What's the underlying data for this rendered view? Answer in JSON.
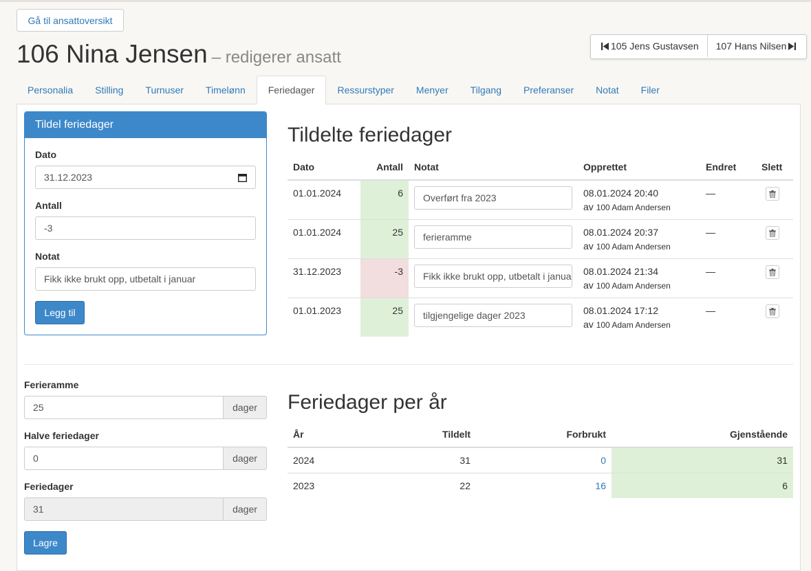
{
  "header": {
    "back_label": "Gå til ansattoversikt",
    "prev_employee": "105 Jens Gustavsen",
    "next_employee": "107 Hans Nilsen",
    "title": "106 Nina Jensen",
    "subtitle": "– redigerer ansatt"
  },
  "tabs": [
    "Personalia",
    "Stilling",
    "Turnuser",
    "Timelønn",
    "Feriedager",
    "Ressurstyper",
    "Menyer",
    "Tilgang",
    "Preferanser",
    "Notat",
    "Filer"
  ],
  "active_tab": "Feriedager",
  "form": {
    "title": "Tildel feriedager",
    "date_label": "Dato",
    "date_value": "31.12.2023",
    "amount_label": "Antall",
    "amount_value": "-3",
    "note_label": "Notat",
    "note_value": "Fikk ikke brukt opp, utbetalt i januar",
    "submit_label": "Legg til"
  },
  "assigned": {
    "title": "Tildelte feriedager",
    "headers": {
      "date": "Dato",
      "amount": "Antall",
      "note": "Notat",
      "created": "Opprettet",
      "changed": "Endret",
      "delete": "Slett"
    },
    "rows": [
      {
        "date": "01.01.2024",
        "amount": "6",
        "note": "Overført fra 2023",
        "created": "08.01.2024 20:40",
        "by_prefix": "av",
        "by": "100 Adam Andersen",
        "changed": "—"
      },
      {
        "date": "01.01.2024",
        "amount": "25",
        "note": "ferieramme",
        "created": "08.01.2024 20:37",
        "by_prefix": "av",
        "by": "100 Adam Andersen",
        "changed": "—"
      },
      {
        "date": "31.12.2023",
        "amount": "-3",
        "note": "Fikk ikke brukt opp, utbetalt i januar",
        "created": "08.01.2024 21:34",
        "by_prefix": "av",
        "by": "100 Adam Andersen",
        "changed": "—"
      },
      {
        "date": "01.01.2023",
        "amount": "25",
        "note": "tilgjengelige dager 2023",
        "created": "08.01.2024 17:12",
        "by_prefix": "av",
        "by": "100 Adam Andersen",
        "changed": "—"
      }
    ]
  },
  "settings": {
    "frame_label": "Ferieramme",
    "frame_value": "25",
    "half_label": "Halve feriedager",
    "half_value": "0",
    "days_label": "Feriedager",
    "days_value": "31",
    "unit": "dager",
    "save_label": "Lagre"
  },
  "per_year": {
    "title": "Feriedager per år",
    "headers": {
      "year": "År",
      "assigned": "Tildelt",
      "used": "Forbrukt",
      "remaining": "Gjenstående"
    },
    "rows": [
      {
        "year": "2024",
        "assigned": "31",
        "used": "0",
        "remaining": "31"
      },
      {
        "year": "2023",
        "assigned": "22",
        "used": "16",
        "remaining": "6"
      }
    ]
  },
  "colors": {
    "accent": "#3d88c9",
    "positive_bg": "#dff0d8",
    "negative_bg": "#f2dede",
    "link": "#2f7ab8"
  }
}
